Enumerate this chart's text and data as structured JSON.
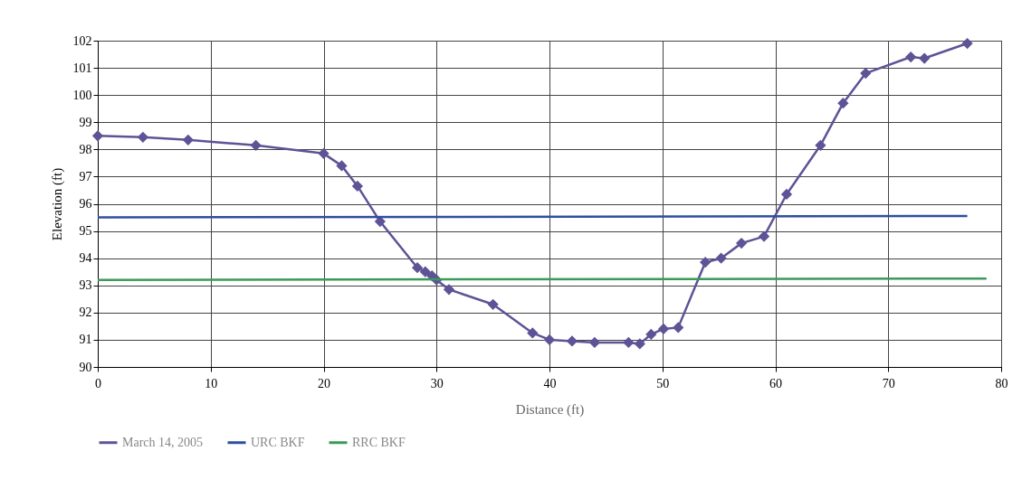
{
  "chart_data": {
    "type": "line",
    "xlabel": "Distance  (ft)",
    "ylabel": "Elevation (ft)",
    "xlim": [
      0,
      80
    ],
    "xticks": [
      0,
      10,
      20,
      30,
      40,
      50,
      60,
      70,
      80
    ],
    "ylim": [
      90,
      102
    ],
    "yticks": [
      90,
      91,
      92,
      93,
      94,
      95,
      96,
      97,
      98,
      99,
      100,
      101,
      102
    ],
    "grid": true,
    "legend": "bottom",
    "series": [
      {
        "name": "March 14, 2005",
        "color": "#5e5396",
        "marker": "diamond",
        "x": [
          0,
          4,
          8,
          14,
          20,
          21.6,
          23,
          25,
          28.3,
          29,
          29.6,
          30,
          31.1,
          35,
          38.5,
          40,
          42,
          44,
          47,
          48,
          49,
          50.1,
          51.4,
          53.8,
          55.2,
          57,
          59,
          61,
          64,
          66,
          68,
          72,
          73.2,
          77
        ],
        "values": [
          98.5,
          98.45,
          98.35,
          98.15,
          97.85,
          97.4,
          96.65,
          95.35,
          93.65,
          93.5,
          93.35,
          93.2,
          92.85,
          92.3,
          91.25,
          91.0,
          90.95,
          90.9,
          90.9,
          90.85,
          91.2,
          91.4,
          91.45,
          93.85,
          94.0,
          94.55,
          94.8,
          96.35,
          98.15,
          99.7,
          100.8,
          101.4,
          101.35,
          101.9
        ]
      },
      {
        "name": "URC BKF",
        "color": "#2f4ea0",
        "x": [
          0,
          77
        ],
        "values": [
          95.5,
          95.55
        ]
      },
      {
        "name": "RRC BKF",
        "color": "#3a9a5a",
        "x": [
          0,
          78.7
        ],
        "values": [
          93.2,
          93.25
        ]
      }
    ]
  }
}
